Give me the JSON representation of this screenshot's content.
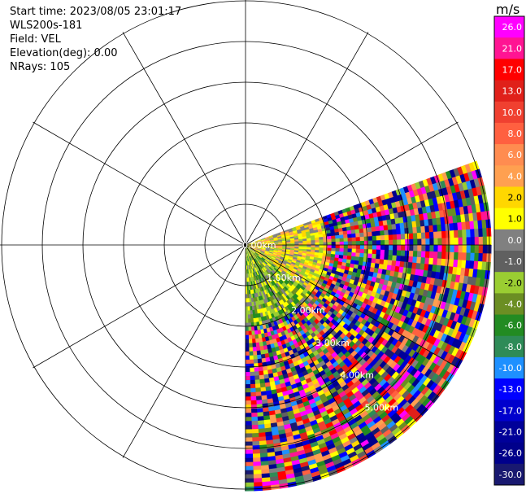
{
  "header": {
    "start_time": "Start time: 2023/08/05 23:01:17",
    "instrument": "WLS200s-181",
    "field": "Field: VEL",
    "elevation": "Elevation(deg): 0.00",
    "nrays": "NRays: 105"
  },
  "chart_data": {
    "type": "heatmap",
    "projection": "polar PPI",
    "field": "VEL",
    "unit": "m/s",
    "sector_azimuth_deg": [
      70,
      180
    ],
    "elevation_deg": 0.0,
    "rays": 105,
    "range_rings": [
      "0.00km",
      "1.00km",
      "2.00km",
      "3.00km",
      "4.00km",
      "5.00km"
    ],
    "colorbar": {
      "ticks": [
        "26.0",
        "21.0",
        "17.0",
        "13.0",
        "10.0",
        "8.0",
        "6.0",
        "4.0",
        "2.0",
        "1.0",
        "0.0",
        "-1.0",
        "-2.0",
        "-4.0",
        "-6.0",
        "-8.0",
        "-10.0",
        "-13.0",
        "-17.0",
        "-21.0",
        "-26.0",
        "-30.0"
      ],
      "colors": [
        "#ff00ff",
        "#ff1493",
        "#ff0000",
        "#e0201a",
        "#f04030",
        "#ff6040",
        "#ff8c50",
        "#ffa050",
        "#ffd700",
        "#ffff00",
        "#808080",
        "#606060",
        "#9acd32",
        "#6b8e23",
        "#228b22",
        "#2e8b57",
        "#1e90ff",
        "#0000ff",
        "#0000cd",
        "#000099",
        "#00008b",
        "#191970"
      ]
    },
    "grid": true
  }
}
